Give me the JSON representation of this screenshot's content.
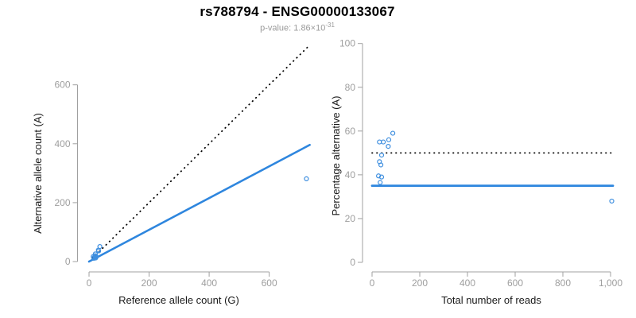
{
  "header": {
    "title": "rs788794 - ENSG00000133067",
    "pvalue_label": "p-value: 1.86×10",
    "pvalue_exponent": "-31"
  },
  "colors": {
    "accent_blue": "#2e86de",
    "point_blue": "#3f8fdf",
    "identity_black": "#000000",
    "axis_gray": "#a0a0a0",
    "tick_label_gray": "#9e9e9e",
    "axis_title_black": "#1a1a1a",
    "subtitle_gray": "#9b9b9b"
  },
  "chart_data": [
    {
      "type": "scatter",
      "panel": "left",
      "title": "",
      "xlabel": "Reference allele count (G)",
      "ylabel": "Alternative allele count (A)",
      "xticks": [
        0,
        200,
        400,
        600
      ],
      "xtick_labels": [
        "0",
        "200",
        "400",
        "600"
      ],
      "yticks": [
        0,
        200,
        400,
        600
      ],
      "ytick_labels": [
        "0",
        "200",
        "400",
        "600"
      ],
      "xlim": [
        0,
        740
      ],
      "ylim": [
        0,
        745
      ],
      "grid": false,
      "legend": "none",
      "points": [
        [
          36,
          51
        ],
        [
          14,
          17
        ],
        [
          21,
          26
        ],
        [
          31,
          39
        ],
        [
          32,
          36
        ],
        [
          20,
          20
        ],
        [
          17,
          14
        ],
        [
          21,
          16
        ],
        [
          16,
          11
        ],
        [
          24,
          16
        ],
        [
          22,
          12
        ],
        [
          724,
          281
        ]
      ],
      "lines": [
        {
          "name": "identity-line",
          "style": "dotted",
          "color": "#000000",
          "width": 1.8,
          "from": [
            0,
            0
          ],
          "to": [
            733,
            733
          ]
        },
        {
          "name": "fit-line",
          "style": "solid",
          "color": "#2e86de",
          "width": 2.6,
          "from": [
            0,
            0
          ],
          "to": [
            735,
            396
          ]
        }
      ]
    },
    {
      "type": "scatter",
      "panel": "right",
      "title": "",
      "xlabel": "Total number of reads",
      "ylabel": "Percentage alternative (A)",
      "xticks": [
        0,
        200,
        400,
        600,
        800,
        1000
      ],
      "xtick_labels": [
        "0",
        "200",
        "400",
        "600",
        "800",
        "1,000"
      ],
      "yticks": [
        0,
        20,
        40,
        60,
        80,
        100
      ],
      "ytick_labels": [
        "0",
        "20",
        "40",
        "60",
        "80",
        "100"
      ],
      "xlim": [
        0,
        1015
      ],
      "ylim": [
        0,
        100
      ],
      "grid": false,
      "legend": "none",
      "points": [
        [
          87,
          59
        ],
        [
          31,
          55
        ],
        [
          47,
          55
        ],
        [
          70,
          56
        ],
        [
          68,
          53
        ],
        [
          40,
          49
        ],
        [
          31,
          46
        ],
        [
          37,
          44.5
        ],
        [
          27,
          39.5
        ],
        [
          40,
          39
        ],
        [
          34,
          36.5
        ],
        [
          1005,
          28
        ]
      ],
      "lines": [
        {
          "name": "fifty-percent-line",
          "style": "dotted",
          "color": "#000000",
          "width": 1.8,
          "from": [
            0,
            50
          ],
          "to": [
            1010,
            50
          ]
        },
        {
          "name": "fit-line",
          "style": "solid",
          "color": "#2e86de",
          "width": 2.8,
          "from": [
            0,
            35
          ],
          "to": [
            1010,
            35
          ]
        }
      ]
    }
  ]
}
